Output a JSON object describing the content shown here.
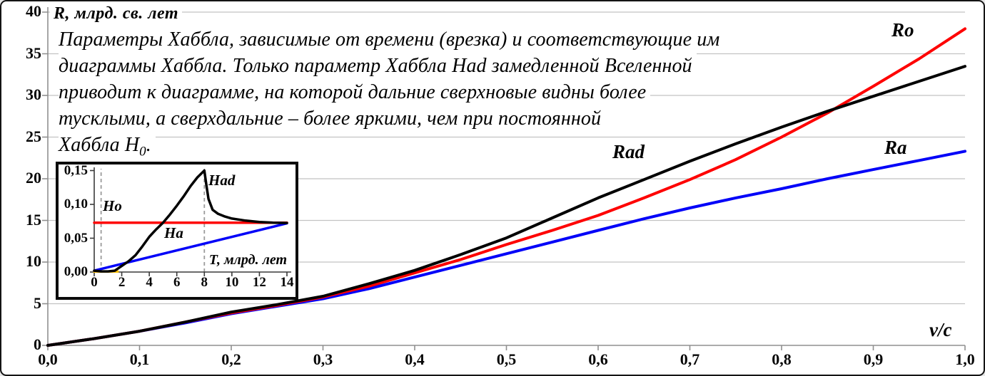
{
  "figure_title": "Диаграммы Хаббла",
  "annotation": {
    "lines": [
      "Параметры Хаббла, зависимые от времени (врезка) и соответствующие им",
      "диаграммы Хаббла. Только параметр Хаббла Had замедленной Вселенной",
      "приводит к диаграмме, на которой дальние сверхновые видны более",
      "тусклыми, а сверхдальние – более яркими, чем при постоянной"
    ],
    "line5_pre": "Хаббла H",
    "line5_sub": "0",
    "line5_post": "."
  },
  "colors": {
    "red": "#fe0000",
    "blue": "#0202f8",
    "black": "#000000",
    "orange": "#ffc000",
    "grid": "#c2c2c2",
    "axis": "#8f8f8f",
    "dashed": "#9b9b9b"
  },
  "chart_data": [
    {
      "id": "main",
      "type": "line",
      "title": "",
      "xlabel": "v/c",
      "ylabel": "R, млрд. св. лет",
      "xlim": [
        0.0,
        1.0
      ],
      "ylim": [
        0,
        40
      ],
      "grid": "horizontal",
      "legend_position": "inline-labels",
      "x_tick_values": [
        0,
        0.1,
        0.2,
        0.3,
        0.4,
        0.5,
        0.6,
        0.7,
        0.8,
        0.9,
        1.0
      ],
      "x_tick_labels": [
        "0,0",
        "0,1",
        "0,2",
        "0,3",
        "0,4",
        "0,5",
        "0,6",
        "0,7",
        "0,8",
        "0,9",
        "1,0"
      ],
      "y_tick_values": [
        0,
        5,
        10,
        15,
        20,
        25,
        30,
        35,
        40
      ],
      "y_tick_labels": [
        "0",
        "5",
        "10",
        "15",
        "20",
        "25",
        "30",
        "35",
        "40"
      ],
      "x": [
        0,
        0.05,
        0.1,
        0.15,
        0.2,
        0.25,
        0.3,
        0.35,
        0.4,
        0.45,
        0.5,
        0.55,
        0.6,
        0.65,
        0.7,
        0.75,
        0.8,
        0.85,
        0.9,
        0.95,
        1.0
      ],
      "series": [
        {
          "name": "Ra",
          "color_key": "blue",
          "values": [
            0,
            0.8,
            1.7,
            2.7,
            3.8,
            4.7,
            5.6,
            6.8,
            8.2,
            9.6,
            11.0,
            12.4,
            13.8,
            15.2,
            16.5,
            17.7,
            18.8,
            20.0,
            21.1,
            22.2,
            23.3
          ]
        },
        {
          "name": "Ro",
          "color_key": "red",
          "values": [
            0,
            0.8,
            1.7,
            2.8,
            3.9,
            4.8,
            5.8,
            7.1,
            8.7,
            10.3,
            12.1,
            13.8,
            15.6,
            17.7,
            19.9,
            22.3,
            25.0,
            27.9,
            31.1,
            34.4,
            38.0
          ]
        },
        {
          "name": "Rad",
          "color_key": "black",
          "values": [
            0,
            0.8,
            1.7,
            2.8,
            4.0,
            4.9,
            5.9,
            7.4,
            9.0,
            10.9,
            12.9,
            15.3,
            17.7,
            19.9,
            22.1,
            24.2,
            26.2,
            28.1,
            29.9,
            31.7,
            33.5
          ]
        }
      ]
    },
    {
      "id": "inset",
      "type": "line",
      "title": "",
      "xlabel": "Т, млрд. лет",
      "ylabel": "",
      "xlim": [
        0,
        14
      ],
      "ylim": [
        0,
        0.15
      ],
      "grid": "none",
      "dashed_vlines": [
        0.5,
        8
      ],
      "x_tick_values": [
        0,
        2,
        4,
        6,
        8,
        10,
        12,
        14
      ],
      "x_tick_labels": [
        "0",
        "2",
        "4",
        "6",
        "8",
        "10",
        "12",
        "14"
      ],
      "y_tick_values": [
        0,
        0.05,
        0.1,
        0.15
      ],
      "y_tick_labels": [
        "0,00",
        "0,05",
        "0,10",
        "0,15"
      ],
      "series": [
        {
          "name": "",
          "color_key": "orange",
          "x": [
            0,
            1.7
          ],
          "values": [
            0.0008,
            0.0008
          ]
        },
        {
          "name": "Ha",
          "color_key": "blue",
          "x": [
            0,
            14
          ],
          "values": [
            0.002,
            0.072
          ]
        },
        {
          "name": "Ho",
          "color_key": "red",
          "x": [
            0,
            14
          ],
          "values": [
            0.073,
            0.073
          ]
        },
        {
          "name": "Had",
          "color_key": "black",
          "x": [
            0,
            0.5,
            1,
            1.5,
            2,
            2.5,
            3,
            3.5,
            4,
            4.5,
            5,
            5.5,
            6,
            6.5,
            7,
            7.5,
            8,
            8.15,
            8.3,
            8.6,
            9,
            9.5,
            10,
            11,
            12,
            13,
            14
          ],
          "values": [
            0.002,
            0.001,
            0.001,
            0.002,
            0.009,
            0.016,
            0.025,
            0.038,
            0.052,
            0.063,
            0.073,
            0.085,
            0.098,
            0.112,
            0.127,
            0.14,
            0.15,
            0.128,
            0.108,
            0.092,
            0.086,
            0.082,
            0.079,
            0.076,
            0.074,
            0.073,
            0.0725
          ]
        }
      ]
    }
  ],
  "curve_labels": {
    "main_ro": "Ro",
    "main_rad": "Rad",
    "main_ra": "Ra",
    "inset_ho": "Ho",
    "inset_ha": "Ha",
    "inset_had": "Had"
  }
}
